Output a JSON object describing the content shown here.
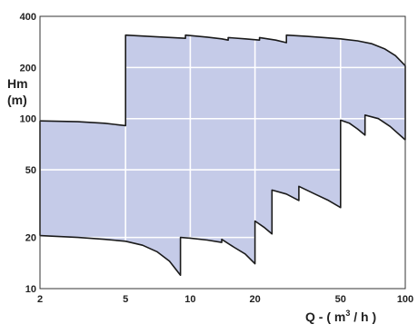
{
  "chart_data": {
    "type": "area",
    "x_scale": "log",
    "y_scale": "log",
    "xlim": [
      2,
      100
    ],
    "ylim": [
      10,
      400
    ],
    "x_ticks": [
      "2",
      "5",
      "10",
      "20",
      "50",
      "100"
    ],
    "y_ticks": [
      "10",
      "20",
      "50",
      "100",
      "200",
      "400"
    ],
    "ylabel_line1": "Hm",
    "ylabel_line2": "(m)",
    "xlabel_prefix": "Q - ( m",
    "xlabel_sup": "3",
    "xlabel_suffix": " / h )",
    "grid": true,
    "fill_color": "#c5cbe8",
    "line_color": "#1a1a1a",
    "grid_color": "#ffffff",
    "plot_bg": "#ffffff",
    "upper_envelope": [
      {
        "x": 2,
        "y": 97
      },
      {
        "x": 3,
        "y": 96
      },
      {
        "x": 4,
        "y": 94
      },
      {
        "x": 5,
        "y": 91
      },
      {
        "x": 5,
        "y": 310
      },
      {
        "x": 7,
        "y": 303
      },
      {
        "x": 9.5,
        "y": 297
      },
      {
        "x": 9.5,
        "y": 310
      },
      {
        "x": 12,
        "y": 302
      },
      {
        "x": 14,
        "y": 295
      },
      {
        "x": 15,
        "y": 290
      },
      {
        "x": 15,
        "y": 300
      },
      {
        "x": 18,
        "y": 295
      },
      {
        "x": 21,
        "y": 290
      },
      {
        "x": 21,
        "y": 300
      },
      {
        "x": 25,
        "y": 290
      },
      {
        "x": 28,
        "y": 280
      },
      {
        "x": 28,
        "y": 310
      },
      {
        "x": 35,
        "y": 305
      },
      {
        "x": 42,
        "y": 300
      },
      {
        "x": 50,
        "y": 295
      },
      {
        "x": 60,
        "y": 287
      },
      {
        "x": 70,
        "y": 276
      },
      {
        "x": 80,
        "y": 258
      },
      {
        "x": 90,
        "y": 235
      },
      {
        "x": 100,
        "y": 205
      }
    ],
    "lower_envelope": [
      {
        "x": 2,
        "y": 20.5
      },
      {
        "x": 3,
        "y": 20
      },
      {
        "x": 4,
        "y": 19.5
      },
      {
        "x": 5,
        "y": 19
      },
      {
        "x": 6,
        "y": 18
      },
      {
        "x": 7,
        "y": 16.5
      },
      {
        "x": 8,
        "y": 14.5
      },
      {
        "x": 9,
        "y": 12
      },
      {
        "x": 9,
        "y": 20
      },
      {
        "x": 10,
        "y": 19.8
      },
      {
        "x": 12,
        "y": 19.3
      },
      {
        "x": 14,
        "y": 18.7
      },
      {
        "x": 14,
        "y": 19.5
      },
      {
        "x": 16,
        "y": 17.5
      },
      {
        "x": 18,
        "y": 16
      },
      {
        "x": 20,
        "y": 14
      },
      {
        "x": 20,
        "y": 25
      },
      {
        "x": 22,
        "y": 23
      },
      {
        "x": 24,
        "y": 21
      },
      {
        "x": 24,
        "y": 38
      },
      {
        "x": 28,
        "y": 36
      },
      {
        "x": 32,
        "y": 33
      },
      {
        "x": 32,
        "y": 40
      },
      {
        "x": 38,
        "y": 36
      },
      {
        "x": 44,
        "y": 33
      },
      {
        "x": 50,
        "y": 30
      },
      {
        "x": 50,
        "y": 98
      },
      {
        "x": 55,
        "y": 94
      },
      {
        "x": 60,
        "y": 87
      },
      {
        "x": 65,
        "y": 80
      },
      {
        "x": 65,
        "y": 105
      },
      {
        "x": 75,
        "y": 100
      },
      {
        "x": 85,
        "y": 90
      },
      {
        "x": 100,
        "y": 75
      }
    ]
  }
}
